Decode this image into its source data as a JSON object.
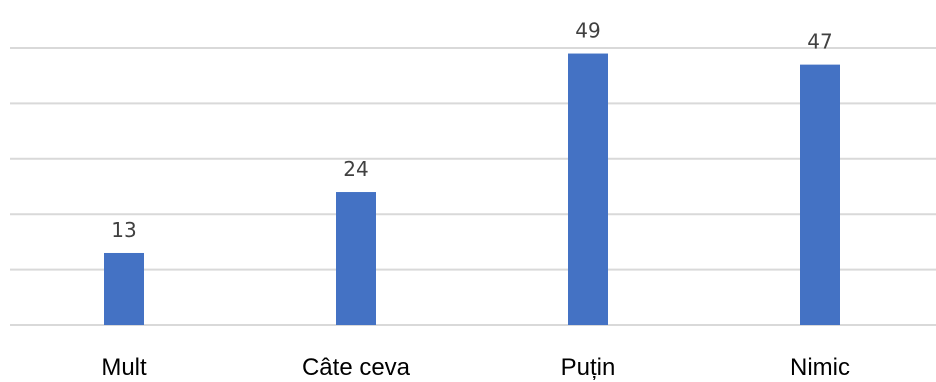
{
  "chart_data": {
    "type": "bar",
    "categories": [
      "Mult",
      "Câte ceva",
      "Puțin",
      "Nimic"
    ],
    "values": [
      13,
      24,
      49,
      47
    ],
    "data_labels": [
      "13",
      "24",
      "49",
      "47"
    ],
    "title": "",
    "xlabel": "",
    "ylabel": "",
    "ylim": [
      0,
      50
    ],
    "grid": true,
    "legend": "none",
    "bar_color": "#4472c4",
    "gridline_color": "#d9d9d9"
  }
}
